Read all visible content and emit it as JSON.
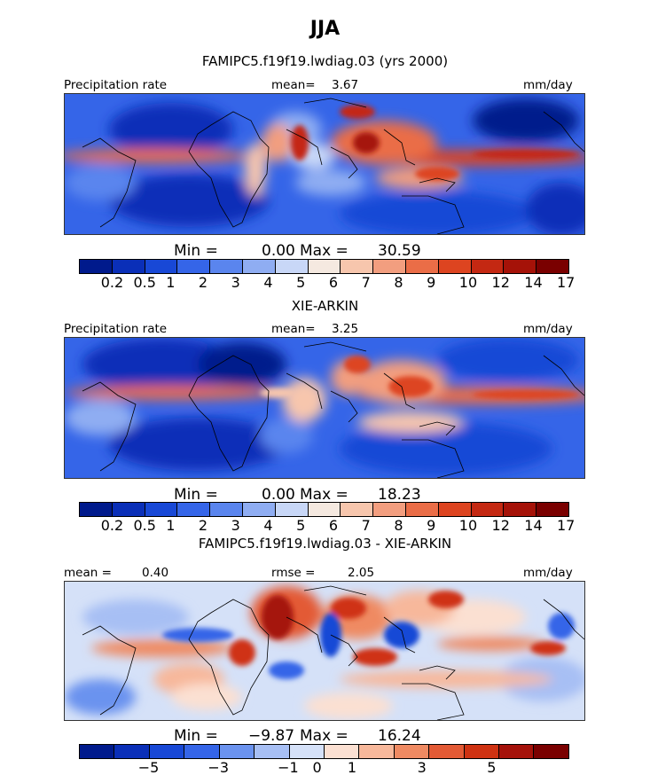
{
  "title": "JJA",
  "colors": {
    "levels13": [
      "#001a8c",
      "#0a2fb8",
      "#1848d6",
      "#3565e8",
      "#5a85ee",
      "#8fadf2",
      "#c8d7f7",
      "#f5e9e0",
      "#f7c6ad",
      "#f29e7f",
      "#ea6d47",
      "#dd4420",
      "#c42812",
      "#a51208",
      "#7a0000"
    ],
    "diff": [
      "#001a8c",
      "#0a2fb8",
      "#1848d6",
      "#3565e8",
      "#6b93ef",
      "#a7bff4",
      "#d5e1f8",
      "#fbe0d2",
      "#f7b89b",
      "#ef8a62",
      "#e35a35",
      "#cf3212",
      "#a5120a",
      "#7a0000"
    ]
  },
  "chart_data": [
    {
      "type": "heatmap",
      "title": "FAMIPC5.f19f19.lwdiag.03 (yrs 2000)",
      "variable": "Precipitation rate",
      "units": "mm/day",
      "mean_label": "mean=",
      "mean": "3.67",
      "min_label": "Min =",
      "min": "0.00",
      "max_label": "Max =",
      "max": "30.59",
      "colorbar_ticks": [
        "0.2",
        "0.5",
        "1",
        "2",
        "3",
        "4",
        "5",
        "6",
        "7",
        "8",
        "9",
        "10",
        "12",
        "14",
        "17"
      ]
    },
    {
      "type": "heatmap",
      "title": "XIE-ARKIN",
      "variable": "Precipitation rate",
      "units": "mm/day",
      "mean_label": "mean=",
      "mean": "3.25",
      "min_label": "Min =",
      "min": "0.00",
      "max_label": "Max =",
      "max": "18.23",
      "colorbar_ticks": [
        "0.2",
        "0.5",
        "1",
        "2",
        "3",
        "4",
        "5",
        "6",
        "7",
        "8",
        "9",
        "10",
        "12",
        "14",
        "17"
      ]
    },
    {
      "type": "heatmap",
      "title": "FAMIPC5.f19f19.lwdiag.03 - XIE-ARKIN",
      "units": "mm/day",
      "mean_label": "mean =",
      "mean": "0.40",
      "rmse_label": "rmse =",
      "rmse": "2.05",
      "min_label": "Min =",
      "min": "−9.87",
      "max_label": "Max =",
      "max": "16.24",
      "colorbar_ticks": [
        "−5",
        "−3",
        "−1",
        "0",
        "1",
        "3",
        "5"
      ]
    }
  ]
}
